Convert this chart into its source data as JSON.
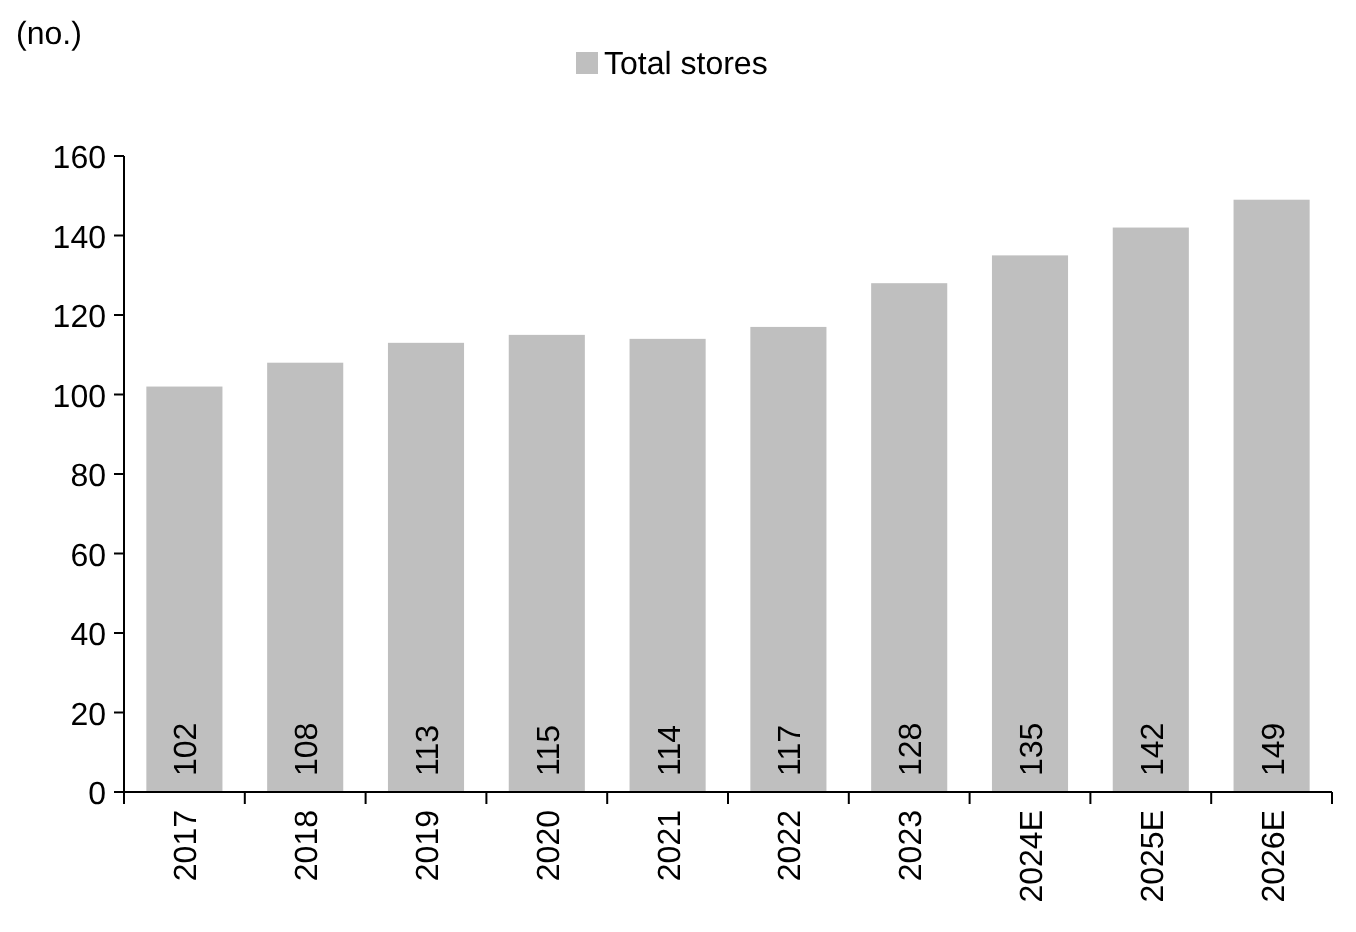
{
  "chart_data": {
    "type": "bar",
    "ylabel": "(no.)",
    "categories": [
      "2017",
      "2018",
      "2019",
      "2020",
      "2021",
      "2022",
      "2023",
      "2024E",
      "2025E",
      "2026E"
    ],
    "series": [
      {
        "name": "Total stores",
        "color": "#bfbfbf",
        "values": [
          102,
          108,
          113,
          115,
          114,
          117,
          128,
          135,
          142,
          149
        ]
      }
    ],
    "ylim": [
      0,
      160
    ],
    "yticks": [
      0,
      20,
      40,
      60,
      80,
      100,
      120,
      140,
      160
    ],
    "data_labels": true,
    "legend": "top",
    "grid": false
  }
}
